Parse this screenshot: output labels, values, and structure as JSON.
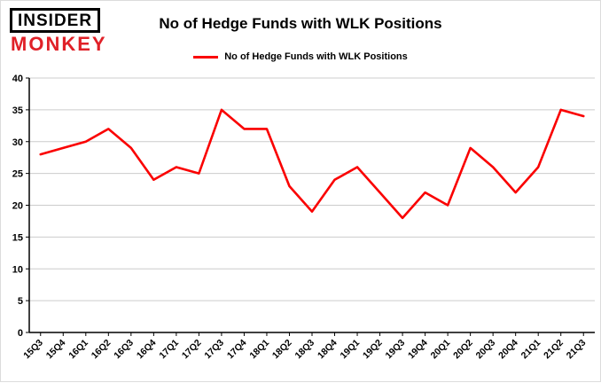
{
  "logo": {
    "line1": "INSIDER",
    "line2": "MONKEY"
  },
  "header": {
    "title": "No of Hedge Funds with WLK Positions"
  },
  "legend": {
    "label": "No of Hedge Funds with WLK Positions",
    "color": "#fa0000"
  },
  "chart_data": {
    "type": "line",
    "title": "No of Hedge Funds with WLK Positions",
    "categories": [
      "15Q3",
      "15Q4",
      "16Q1",
      "16Q2",
      "16Q3",
      "16Q4",
      "17Q1",
      "17Q2",
      "17Q3",
      "17Q4",
      "18Q1",
      "18Q2",
      "18Q3",
      "18Q4",
      "19Q1",
      "19Q2",
      "19Q3",
      "19Q4",
      "20Q1",
      "20Q2",
      "20Q3",
      "20Q4",
      "21Q1",
      "21Q2",
      "21Q3"
    ],
    "values": [
      28,
      29,
      30,
      32,
      29,
      24,
      26,
      25,
      35,
      32,
      32,
      23,
      19,
      24,
      26,
      22,
      18,
      22,
      20,
      29,
      26,
      22,
      26,
      35,
      34
    ],
    "xlabel": "",
    "ylabel": "",
    "ylim": [
      0,
      40
    ],
    "ytick_step": 5,
    "grid": true,
    "grid_color": "#cccccc",
    "line_color": "#fa0000",
    "legend_position": "top"
  }
}
